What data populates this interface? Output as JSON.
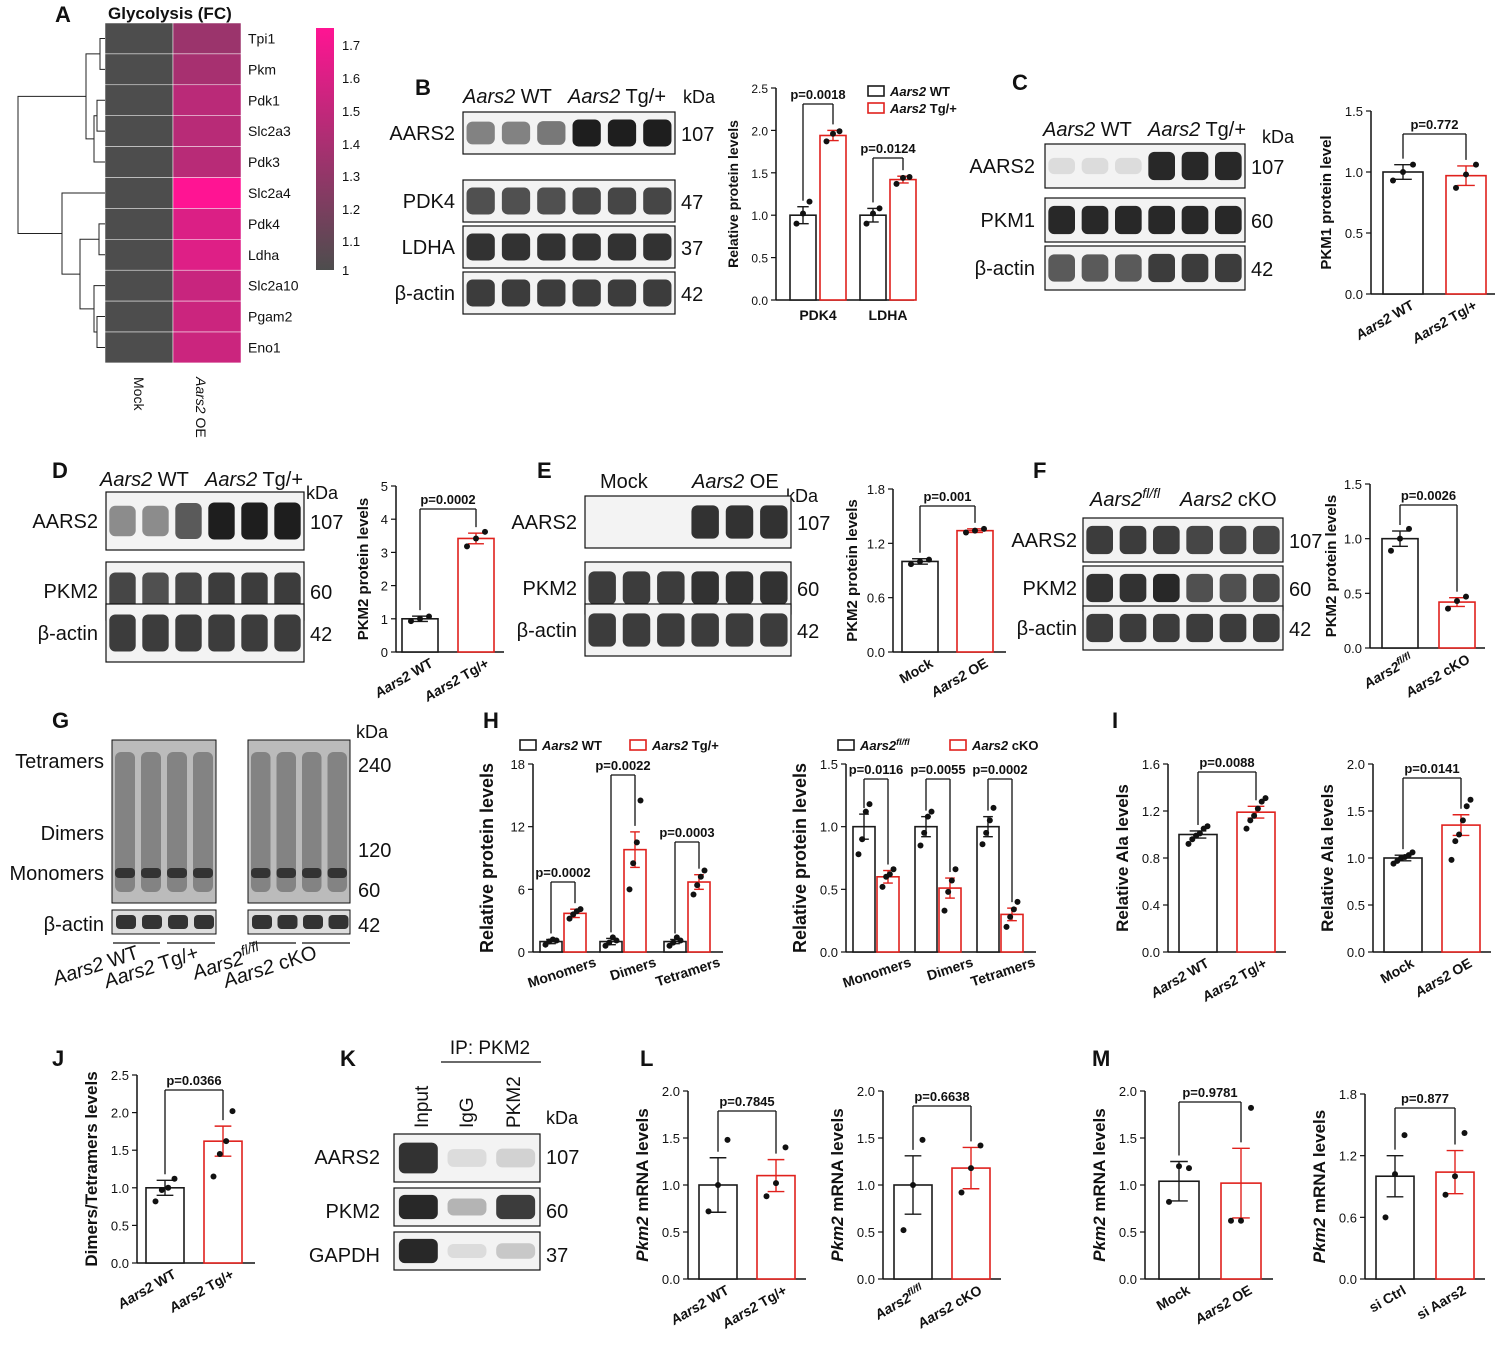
{
  "panel_letters": [
    "A",
    "B",
    "C",
    "D",
    "E",
    "F",
    "G",
    "H",
    "I",
    "J",
    "K",
    "L",
    "M"
  ],
  "colors": {
    "wt": "#1a1a1a",
    "tg": "#e0211d",
    "heat_low": "#4d4d4d",
    "heat_high": "#ff1493"
  },
  "kda": "kDa",
  "A": {
    "title": "Glycolysis (FC)",
    "genes": [
      "Tpi1",
      "Pkm",
      "Pdk1",
      "Slc2a3",
      "Pdk3",
      "Slc2a4",
      "Pdk4",
      "Ldha",
      "Slc2a10",
      "Pgam2",
      "Eno1"
    ],
    "mock_fc": [
      1,
      1,
      1,
      1,
      1,
      1,
      1,
      1,
      1,
      1,
      1
    ],
    "oe_fc": [
      1.33,
      1.38,
      1.46,
      1.45,
      1.45,
      1.75,
      1.6,
      1.61,
      1.52,
      1.53,
      1.53
    ],
    "columns": [
      "Mock",
      "Aars2 OE"
    ],
    "scale": {
      "ticks": [
        "1.7",
        "1.6",
        "1.5",
        "1.4",
        "1.3",
        "1.2",
        "1.1",
        "1"
      ],
      "min": 1,
      "max": 1.75
    }
  },
  "B": {
    "blot": {
      "groups": [
        {
          "gene": "Aars2",
          "label": "WT"
        },
        {
          "gene": "Aars2",
          "label": "Tg/+"
        }
      ],
      "rows": [
        {
          "name": "AARS2",
          "kda": "107"
        },
        {
          "name": "PDK4",
          "kda": "47"
        },
        {
          "name": "LDHA",
          "kda": "37"
        },
        {
          "name": "β-actin",
          "kda": "42"
        }
      ]
    },
    "chart": {
      "type": "bar",
      "ylabel": "Relative protein levels",
      "ylim": [
        0,
        2.5
      ],
      "yticks": [
        "0.0",
        "0.5",
        "1.0",
        "1.5",
        "2.0",
        "2.5"
      ],
      "categories": [
        "PDK4",
        "LDHA"
      ],
      "legend": [
        {
          "gene": "Aars2",
          "label": "WT"
        },
        {
          "gene": "Aars2",
          "label": "Tg/+"
        }
      ],
      "series": [
        {
          "values": [
            1.0,
            1.0
          ],
          "errors": [
            0.1,
            0.08
          ],
          "points": [
            [
              0.9,
              1.02,
              1.16
            ],
            [
              0.9,
              1.02,
              1.08
            ]
          ]
        },
        {
          "values": [
            1.94,
            1.42
          ],
          "errors": [
            0.06,
            0.04
          ],
          "points": [
            [
              1.87,
              1.96,
              1.99
            ],
            [
              1.37,
              1.44,
              1.45
            ]
          ]
        }
      ],
      "pvalues": [
        "p=0.0018",
        "p=0.0124"
      ]
    }
  },
  "C": {
    "blot": {
      "groups": [
        {
          "gene": "Aars2",
          "label": "WT"
        },
        {
          "gene": "Aars2",
          "label": "Tg/+"
        }
      ],
      "rows": [
        {
          "name": "AARS2",
          "kda": "107"
        },
        {
          "name": "PKM1",
          "kda": "60"
        },
        {
          "name": "β-actin",
          "kda": "42"
        }
      ]
    },
    "chart": {
      "type": "bar",
      "ylabel": "PKM1 protein level",
      "ylim": [
        0,
        1.5
      ],
      "yticks": [
        "0.0",
        "0.5",
        "1.0",
        "1.5"
      ],
      "categories": [
        "Aars2 WT",
        "Aars2 Tg/+"
      ],
      "values": [
        1.0,
        0.97
      ],
      "errors": [
        0.06,
        0.08
      ],
      "points": [
        [
          0.93,
          1.0,
          1.06
        ],
        [
          0.87,
          0.98,
          1.06
        ]
      ],
      "pvalue": "p=0.772"
    }
  },
  "D": {
    "blot": {
      "groups": [
        {
          "gene": "Aars2",
          "label": "WT"
        },
        {
          "gene": "Aars2",
          "label": "Tg/+"
        }
      ],
      "rows": [
        {
          "name": "AARS2",
          "kda": "107"
        },
        {
          "name": "PKM2",
          "kda": "60"
        },
        {
          "name": "β-actin",
          "kda": "42"
        }
      ]
    },
    "chart": {
      "type": "bar",
      "ylabel": "PKM2 protein levels",
      "ylim": [
        0,
        5
      ],
      "yticks": [
        "0",
        "1",
        "2",
        "3",
        "4",
        "5"
      ],
      "categories": [
        "Aars2 WT",
        "Aars2 Tg/+"
      ],
      "values": [
        1.0,
        3.42
      ],
      "errors": [
        0.08,
        0.16
      ],
      "points": [
        [
          0.93,
          1.0,
          1.07
        ],
        [
          3.18,
          3.42,
          3.62
        ]
      ],
      "pvalue": "p=0.0002"
    }
  },
  "E": {
    "blot": {
      "groups": [
        {
          "gene": "",
          "label": "Mock"
        },
        {
          "gene": "Aars2",
          "label": "OE"
        }
      ],
      "rows": [
        {
          "name": "AARS2",
          "kda": "107"
        },
        {
          "name": "PKM2",
          "kda": "60"
        },
        {
          "name": "β-actin",
          "kda": "42"
        }
      ]
    },
    "chart": {
      "type": "bar",
      "ylabel": "PKM2 protein levels",
      "ylim": [
        0,
        1.8
      ],
      "yticks": [
        "0.0",
        "0.6",
        "1.2",
        "1.8"
      ],
      "categories": [
        "Mock",
        "Aars2 OE"
      ],
      "values": [
        1.0,
        1.34
      ],
      "errors": [
        0.03,
        0.02
      ],
      "points": [
        [
          0.97,
          1.0,
          1.02
        ],
        [
          1.32,
          1.34,
          1.36
        ]
      ],
      "pvalue": "p=0.001"
    }
  },
  "F": {
    "blot": {
      "groups": [
        {
          "gene": "Aars2",
          "label": "fl/fl"
        },
        {
          "gene": "Aars2",
          "label": "cKO"
        }
      ],
      "rows": [
        {
          "name": "AARS2",
          "kda": "107"
        },
        {
          "name": "PKM2",
          "kda": "60"
        },
        {
          "name": "β-actin",
          "kda": "42"
        }
      ]
    },
    "chart": {
      "type": "bar",
      "ylabel": "PKM2 protein levels",
      "ylim": [
        0,
        1.5
      ],
      "yticks": [
        "0.0",
        "0.5",
        "1.0",
        "1.5"
      ],
      "categories": [
        "Aars2 fl/fl",
        "Aars2 cKO"
      ],
      "values": [
        1.0,
        0.42
      ],
      "errors": [
        0.07,
        0.04
      ],
      "points": [
        [
          0.89,
          1.0,
          1.09
        ],
        [
          0.36,
          0.43,
          0.47
        ]
      ],
      "pvalue": "p=0.0026"
    }
  },
  "G": {
    "bands": [
      "Tetramers",
      "Dimers",
      "Monomers",
      "β-actin"
    ],
    "kda": [
      "240",
      "120",
      "60",
      "42"
    ],
    "groups": [
      {
        "gene": "Aars2",
        "label": "WT"
      },
      {
        "gene": "Aars2",
        "label": "Tg/+"
      },
      {
        "gene": "Aars2",
        "label": "fl/fl"
      },
      {
        "gene": "Aars2",
        "label": "cKO"
      }
    ]
  },
  "H": {
    "left": {
      "type": "bar",
      "ylabel": "Relative protein levels",
      "ylim": [
        0,
        18
      ],
      "yticks": [
        "0",
        "6",
        "12",
        "18"
      ],
      "categories": [
        "Monomers",
        "Dimers",
        "Tetramers"
      ],
      "legend": [
        {
          "gene": "Aars2",
          "label": "WT"
        },
        {
          "gene": "Aars2",
          "label": "Tg/+"
        }
      ],
      "series": [
        {
          "values": [
            1.0,
            1.0,
            1.0
          ],
          "errors": [
            0.2,
            0.3,
            0.2
          ],
          "points": [
            [
              0.7,
              1.0,
              1.2,
              1.1
            ],
            [
              0.6,
              0.9,
              1.4,
              1.1
            ],
            [
              0.6,
              0.9,
              1.4,
              1.1
            ]
          ]
        },
        {
          "values": [
            3.7,
            9.8,
            6.7
          ],
          "errors": [
            0.4,
            1.7,
            0.7
          ],
          "points": [
            [
              3.2,
              3.6,
              3.9,
              4.1
            ],
            [
              6.0,
              8.5,
              10.5,
              14.5
            ],
            [
              5.5,
              6.4,
              7.2,
              7.8
            ]
          ]
        }
      ],
      "pvalues": [
        "p=0.0002",
        "p=0.0022",
        "p=0.0003"
      ]
    },
    "right": {
      "type": "bar",
      "ylabel": "Relative protein levels",
      "ylim": [
        0,
        1.5
      ],
      "yticks": [
        "0.0",
        "0.5",
        "1.0",
        "1.5"
      ],
      "categories": [
        "Monomers",
        "Dimers",
        "Tetramers"
      ],
      "legend": [
        {
          "gene": "Aars2",
          "label": "fl/fl"
        },
        {
          "gene": "Aars2",
          "label": "cKO"
        }
      ],
      "series": [
        {
          "values": [
            1.0,
            1.0,
            1.0
          ],
          "errors": [
            0.1,
            0.08,
            0.08
          ],
          "points": [
            [
              0.78,
              0.9,
              1.12,
              1.18
            ],
            [
              0.85,
              0.95,
              1.08,
              1.12
            ],
            [
              0.86,
              0.95,
              1.05,
              1.15
            ]
          ]
        },
        {
          "values": [
            0.6,
            0.51,
            0.3
          ],
          "errors": [
            0.05,
            0.08,
            0.05
          ],
          "points": [
            [
              0.52,
              0.6,
              0.62,
              0.66
            ],
            [
              0.33,
              0.48,
              0.57,
              0.66
            ],
            [
              0.2,
              0.28,
              0.34,
              0.4
            ]
          ]
        }
      ],
      "pvalues": [
        "p=0.0116",
        "p=0.0055",
        "p=0.0002"
      ]
    }
  },
  "I": {
    "left": {
      "type": "bar",
      "ylabel": "Relative Ala levels",
      "ylim": [
        0,
        1.6
      ],
      "yticks": [
        "0.0",
        "0.4",
        "0.8",
        "1.2",
        "1.6"
      ],
      "categories": [
        "Aars2 WT",
        "Aars2 Tg/+"
      ],
      "values": [
        1.0,
        1.19
      ],
      "errors": [
        0.03,
        0.05
      ],
      "points": [
        [
          0.92,
          0.96,
          0.99,
          1.01,
          1.05,
          1.07
        ],
        [
          1.05,
          1.12,
          1.16,
          1.22,
          1.28,
          1.31
        ]
      ],
      "pvalue": "p=0.0088"
    },
    "right": {
      "type": "bar",
      "ylabel": "Relative Ala levels",
      "ylim": [
        0,
        2.0
      ],
      "yticks": [
        "0.0",
        "0.5",
        "1.0",
        "1.5",
        "2.0"
      ],
      "categories": [
        "Mock",
        "Aars2 OE"
      ],
      "values": [
        1.0,
        1.35
      ],
      "errors": [
        0.03,
        0.11
      ],
      "points": [
        [
          0.94,
          0.97,
          1.0,
          1.01,
          1.03,
          1.06
        ],
        [
          0.98,
          1.18,
          1.25,
          1.4,
          1.55,
          1.62
        ]
      ],
      "pvalue": "p=0.0141"
    }
  },
  "J": {
    "type": "bar",
    "ylabel": "Dimers/Tetramers levels",
    "ylim": [
      0,
      2.5
    ],
    "yticks": [
      "0.0",
      "0.5",
      "1.0",
      "1.5",
      "2.0",
      "2.5"
    ],
    "categories": [
      "Aars2 WT",
      "Aars2 Tg/+"
    ],
    "values": [
      1.0,
      1.62
    ],
    "errors": [
      0.1,
      0.2
    ],
    "points": [
      [
        0.82,
        0.97,
        1.0,
        1.12
      ],
      [
        1.15,
        1.45,
        1.62,
        2.02
      ]
    ],
    "pvalue": "p=0.0366"
  },
  "K": {
    "header": "IP: PKM2",
    "lanes": [
      "Input",
      "IgG",
      "PKM2"
    ],
    "rows": [
      {
        "name": "AARS2",
        "kda": "107"
      },
      {
        "name": "PKM2",
        "kda": "60"
      },
      {
        "name": "GAPDH",
        "kda": "37"
      }
    ]
  },
  "L": {
    "left": {
      "type": "bar",
      "ylabel_gene": "Pkm2",
      "ylabel": "mRNA levels",
      "ylim": [
        0,
        2.0
      ],
      "yticks": [
        "0.0",
        "0.5",
        "1.0",
        "1.5",
        "2.0"
      ],
      "categories": [
        "Aars2 WT",
        "Aars2 Tg/+"
      ],
      "values": [
        1.0,
        1.1
      ],
      "errors": [
        0.29,
        0.17
      ],
      "points": [
        [
          0.72,
          1.0,
          1.48
        ],
        [
          0.88,
          1.02,
          1.4
        ]
      ],
      "pvalue": "p=0.7845"
    },
    "right": {
      "type": "bar",
      "ylabel_gene": "Pkm2",
      "ylabel": "mRNA levels",
      "ylim": [
        0,
        2.0
      ],
      "yticks": [
        "0.0",
        "0.5",
        "1.0",
        "1.5",
        "2.0"
      ],
      "categories": [
        "Aars2 fl/fl",
        "Aars2 cKO"
      ],
      "values": [
        1.0,
        1.18
      ],
      "errors": [
        0.31,
        0.22
      ],
      "points": [
        [
          0.52,
          1.0,
          1.48
        ],
        [
          0.92,
          1.18,
          1.42
        ]
      ],
      "pvalue": "p=0.6638"
    }
  },
  "M": {
    "left": {
      "type": "bar",
      "ylabel_gene": "Pkm2",
      "ylabel": "mRNA levels",
      "ylim": [
        0,
        2.0
      ],
      "yticks": [
        "0.0",
        "0.5",
        "1.0",
        "1.5",
        "2.0"
      ],
      "categories": [
        "Mock",
        "Aars2 OE"
      ],
      "values": [
        1.04,
        1.02
      ],
      "errors": [
        0.21,
        0.37
      ],
      "points": [
        [
          0.82,
          1.2,
          1.18
        ],
        [
          0.62,
          0.62,
          1.82
        ]
      ],
      "pvalue": "p=0.9781"
    },
    "right": {
      "type": "bar",
      "ylabel_gene": "Pkm2",
      "ylabel": "mRNA levels",
      "ylim": [
        0,
        1.8
      ],
      "yticks": [
        "0.0",
        "0.6",
        "1.2",
        "1.8"
      ],
      "categories": [
        "si Ctrl",
        "si Aars2"
      ],
      "values": [
        1.0,
        1.04
      ],
      "errors": [
        0.2,
        0.21
      ],
      "points": [
        [
          0.6,
          1.02,
          1.4
        ],
        [
          0.82,
          1.0,
          1.42
        ]
      ],
      "pvalue": "p=0.877"
    }
  }
}
